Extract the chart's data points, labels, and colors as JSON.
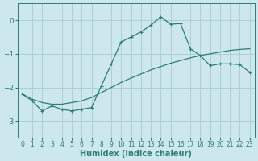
{
  "xlabel": "Humidex (Indice chaleur)",
  "background_color": "#cce8ee",
  "grid_color": "#aacccc",
  "line_color": "#2e7d70",
  "xlim": [
    -0.5,
    23.5
  ],
  "ylim": [
    -3.5,
    0.5
  ],
  "yticks": [
    0,
    -1,
    -2,
    -3
  ],
  "xticks": [
    0,
    1,
    2,
    3,
    4,
    5,
    6,
    7,
    8,
    9,
    10,
    11,
    12,
    13,
    14,
    15,
    16,
    17,
    18,
    19,
    20,
    21,
    22,
    23
  ],
  "zigzag_x": [
    0,
    1,
    2,
    3,
    4,
    5,
    6,
    7,
    8,
    9,
    10,
    11,
    12,
    13,
    14,
    15,
    16,
    17,
    18,
    19,
    20,
    21,
    22,
    23
  ],
  "zigzag_y": [
    -2.2,
    -2.4,
    -2.7,
    -2.55,
    -2.65,
    -2.7,
    -2.65,
    -2.6,
    -1.95,
    -1.3,
    -0.65,
    -0.5,
    -0.35,
    -0.15,
    0.1,
    -0.12,
    -0.1,
    -0.85,
    -1.05,
    -1.35,
    -1.3,
    -1.3,
    -1.32,
    -1.55
  ],
  "smooth_x": [
    0,
    1,
    2,
    3,
    4,
    5,
    6,
    7,
    8,
    9,
    10,
    11,
    12,
    13,
    14,
    15,
    16,
    17,
    18,
    19,
    20,
    21,
    22,
    23
  ],
  "smooth_y": [
    -2.2,
    -2.35,
    -2.45,
    -2.5,
    -2.5,
    -2.45,
    -2.4,
    -2.3,
    -2.15,
    -2.0,
    -1.85,
    -1.72,
    -1.6,
    -1.48,
    -1.38,
    -1.28,
    -1.2,
    -1.12,
    -1.05,
    -1.0,
    -0.95,
    -0.9,
    -0.87,
    -0.85
  ]
}
